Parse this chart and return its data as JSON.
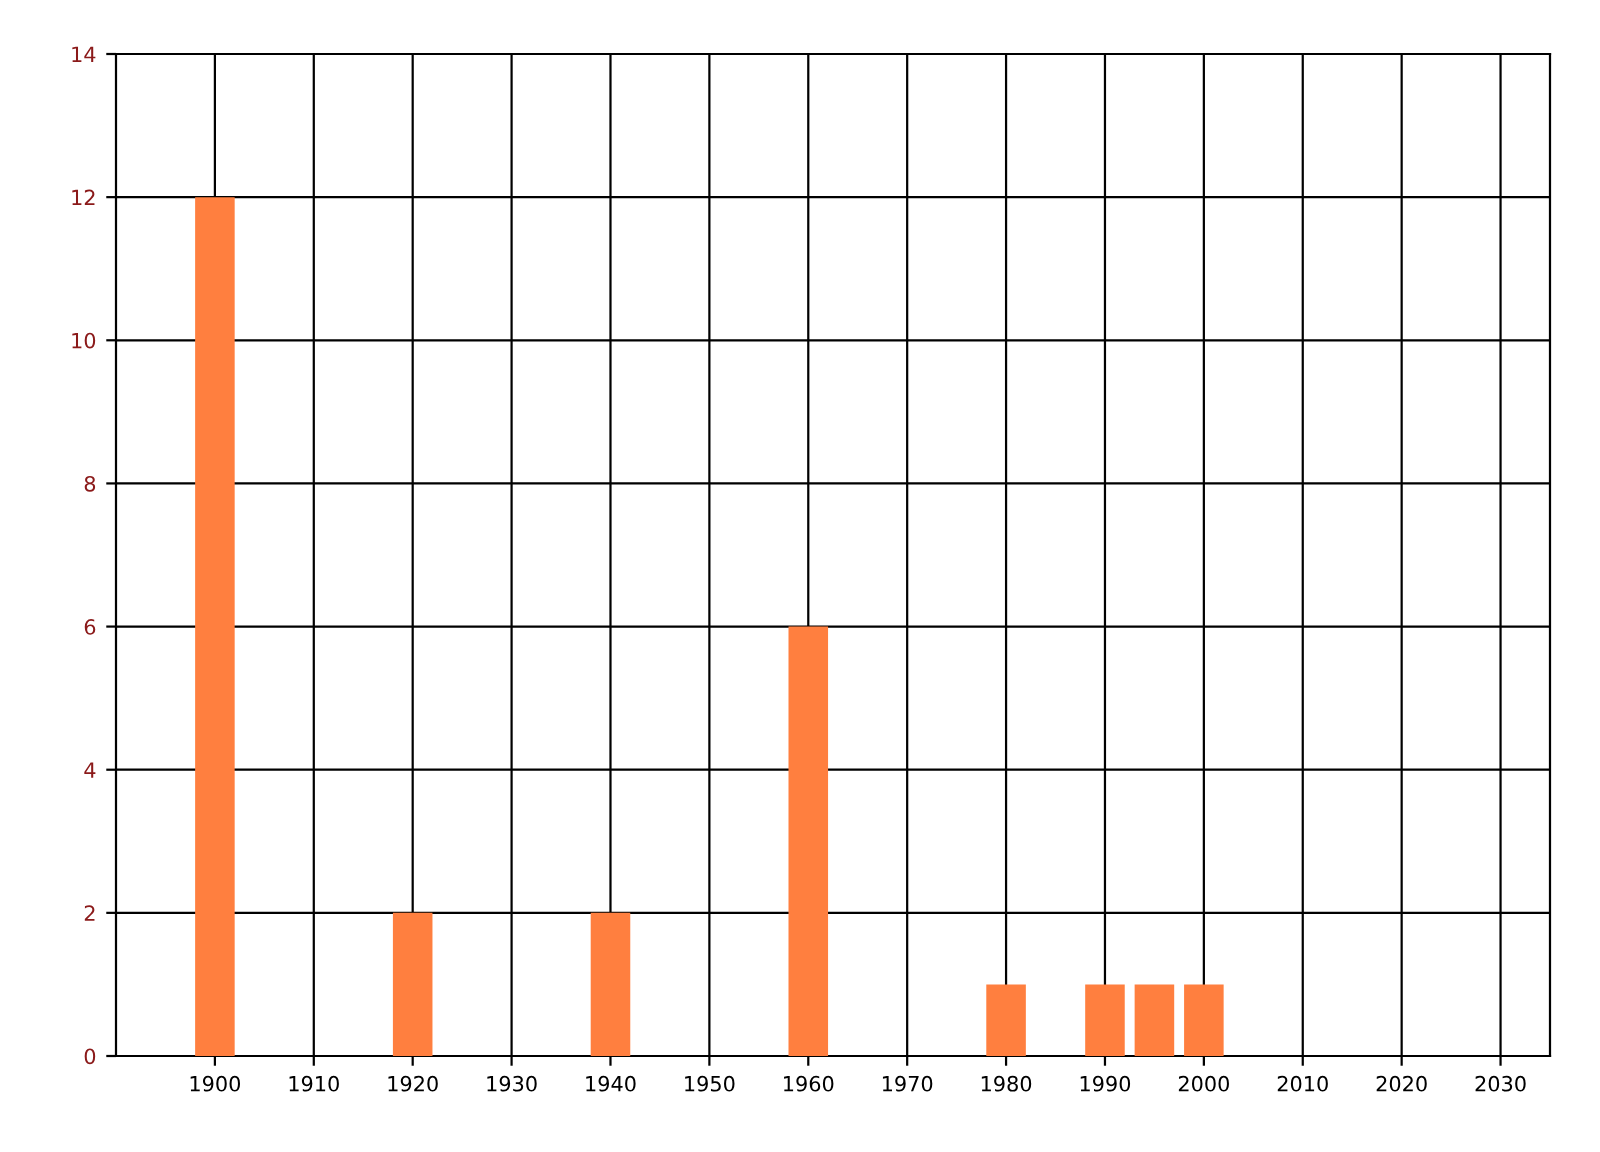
{
  "chart_data": {
    "type": "bar",
    "x": [
      1900,
      1920,
      1940,
      1960,
      1980,
      1990,
      1995,
      2000
    ],
    "values": [
      12,
      2,
      2,
      6,
      1,
      1,
      1,
      1
    ],
    "color": "#ff7f3f",
    "xlim": [
      1890,
      2035
    ],
    "xticks": [
      1900,
      1910,
      1920,
      1930,
      1940,
      1950,
      1960,
      1970,
      1980,
      1990,
      2000,
      2010,
      2020,
      2030
    ],
    "ylim": [
      0,
      14
    ],
    "yticks": [
      0,
      2,
      4,
      6,
      8,
      10,
      12,
      14
    ],
    "grid": true
  }
}
